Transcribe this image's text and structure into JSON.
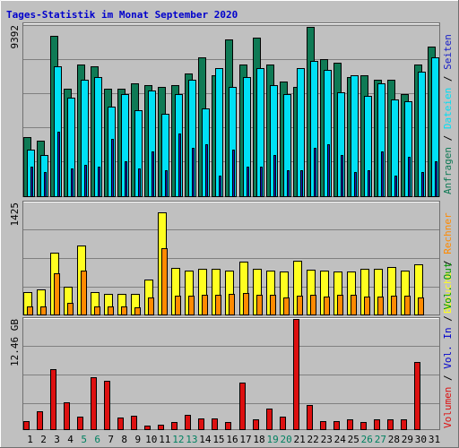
{
  "title": "Tages-Statistik im Monat September 2020",
  "colors": {
    "background": "#c0c0c0",
    "frame_light": "#ffffff",
    "frame_dark": "#707070",
    "grid": "#808080",
    "title": "#0000cc",
    "weekday_label": "#000000",
    "weekend_label": "#008060",
    "anfragen": "#0f7a55",
    "dateien": "#00e0f5",
    "seiten": "#1a20c8",
    "besuche": "#ffff20",
    "rechner": "#ff8a00",
    "vol_in": "#0000cc",
    "vol_out": "#009900",
    "volumen": "#dd1010"
  },
  "axis_labels": {
    "top": "9392",
    "middle": "1425",
    "bottom": "12.46 GB"
  },
  "chart_data": [
    {
      "type": "bar",
      "panel": "top",
      "categories": [
        "1",
        "2",
        "3",
        "4",
        "5",
        "6",
        "7",
        "8",
        "9",
        "10",
        "11",
        "12",
        "13",
        "14",
        "15",
        "16",
        "17",
        "18",
        "19",
        "20",
        "21",
        "22",
        "23",
        "24",
        "25",
        "26",
        "27",
        "28",
        "29",
        "30",
        "31"
      ],
      "weekend_categories": [
        "5",
        "6",
        "12",
        "13",
        "19",
        "20",
        "26",
        "27"
      ],
      "ylim": [
        0,
        9392
      ],
      "ymax_label": "9392",
      "legend": [
        {
          "label": "Anfragen",
          "color": "#0f7a55"
        },
        {
          "label": "Dateien",
          "color": "#00e0f5"
        },
        {
          "label": "Seiten",
          "color": "#1a20c8"
        }
      ],
      "series": [
        {
          "name": "Anfragen",
          "values": [
            3300,
            3100,
            8900,
            6000,
            7300,
            7200,
            6000,
            6000,
            6300,
            6200,
            6100,
            6200,
            6800,
            7700,
            6700,
            8700,
            7300,
            8800,
            7300,
            6400,
            6100,
            9400,
            7600,
            7400,
            6600,
            6700,
            6500,
            6500,
            5700,
            7300,
            8300
          ]
        },
        {
          "name": "Dateien",
          "values": [
            2600,
            2300,
            7200,
            5500,
            6500,
            6600,
            5000,
            5700,
            4800,
            5900,
            4600,
            5700,
            6500,
            4900,
            7100,
            6100,
            6600,
            7100,
            6200,
            5700,
            7100,
            7500,
            7000,
            5800,
            6700,
            5600,
            6300,
            5400,
            5300,
            6900,
            7700
          ]
        },
        {
          "name": "Seiten",
          "values": [
            1700,
            1400,
            3600,
            1600,
            1800,
            1700,
            3200,
            2000,
            1600,
            2500,
            1500,
            3500,
            2700,
            2900,
            1200,
            2600,
            1700,
            1700,
            2300,
            1500,
            1500,
            2700,
            2900,
            2300,
            1400,
            1500,
            2500,
            1200,
            2200,
            1400,
            2000
          ]
        }
      ]
    },
    {
      "type": "bar",
      "panel": "middle",
      "categories": [
        "1",
        "2",
        "3",
        "4",
        "5",
        "6",
        "7",
        "8",
        "9",
        "10",
        "11",
        "12",
        "13",
        "14",
        "15",
        "16",
        "17",
        "18",
        "19",
        "20",
        "21",
        "22",
        "23",
        "24",
        "25",
        "26",
        "27",
        "28",
        "29",
        "30",
        "31"
      ],
      "ylim": [
        0,
        1425
      ],
      "ymax_label": "1425",
      "legend": [
        {
          "label": "Besuche",
          "color": "#ffff20"
        },
        {
          "label": "Rechner",
          "color": "#ff8a00"
        }
      ],
      "series": [
        {
          "name": "Besuche",
          "values": [
            300,
            330,
            800,
            370,
            900,
            300,
            280,
            280,
            280,
            460,
            1320,
            610,
            580,
            600,
            600,
            580,
            690,
            600,
            580,
            560,
            700,
            590,
            580,
            560,
            560,
            600,
            600,
            620,
            580,
            650,
            0
          ]
        },
        {
          "name": "Rechner",
          "values": [
            120,
            120,
            540,
            160,
            580,
            120,
            120,
            120,
            100,
            230,
            860,
            250,
            250,
            270,
            270,
            280,
            290,
            270,
            260,
            230,
            250,
            260,
            240,
            260,
            260,
            240,
            240,
            250,
            250,
            230,
            0
          ]
        }
      ]
    },
    {
      "type": "bar",
      "panel": "bottom",
      "categories": [
        "1",
        "2",
        "3",
        "4",
        "5",
        "6",
        "7",
        "8",
        "9",
        "10",
        "11",
        "12",
        "13",
        "14",
        "15",
        "16",
        "17",
        "18",
        "19",
        "20",
        "21",
        "22",
        "23",
        "24",
        "25",
        "26",
        "27",
        "28",
        "29",
        "30",
        "31"
      ],
      "ylim": [
        0,
        12.46
      ],
      "ymax_label": "12.46 GB",
      "unit": "GB",
      "legend": [
        {
          "label": "Volumen",
          "color": "#dd1010"
        },
        {
          "label": "Vol. In",
          "color": "#0000cc"
        },
        {
          "label": "Vol. Out",
          "color": "#009900"
        }
      ],
      "series": [
        {
          "name": "Volumen",
          "values": [
            1.0,
            2.1,
            6.8,
            3.1,
            1.5,
            5.9,
            5.5,
            1.4,
            1.6,
            0.5,
            0.6,
            0.9,
            1.7,
            1.3,
            1.3,
            0.9,
            5.3,
            1.2,
            2.4,
            1.5,
            12.46,
            2.8,
            1.0,
            1.0,
            1.2,
            0.9,
            1.2,
            1.2,
            1.2,
            7.6,
            0
          ]
        }
      ]
    }
  ]
}
